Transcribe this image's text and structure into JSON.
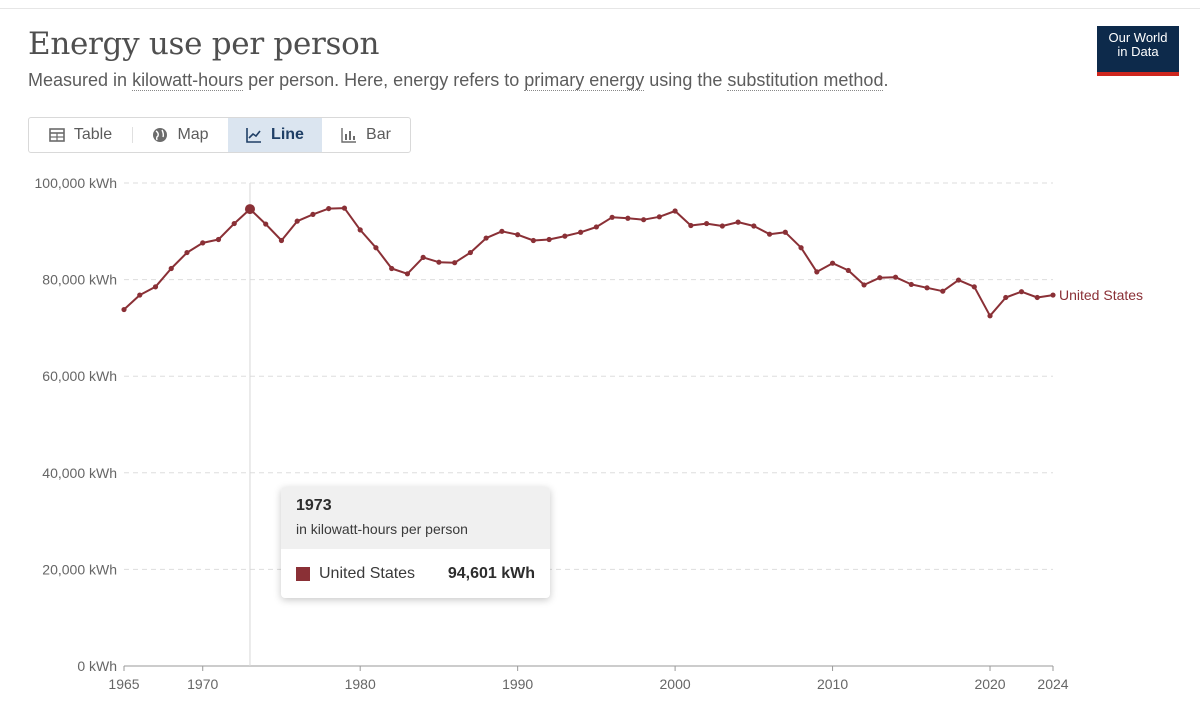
{
  "header": {
    "title": "Energy use per person",
    "subtitle_parts": [
      "Measured in ",
      "kilowatt-hours",
      " per person. Here, energy refers to ",
      "primary energy",
      " using the ",
      "substitution method",
      "."
    ],
    "logo_line1": "Our World",
    "logo_line2": "in Data"
  },
  "tabs": [
    {
      "label": "Table",
      "icon": "table-icon",
      "active": false
    },
    {
      "label": "Map",
      "icon": "globe-icon",
      "active": false
    },
    {
      "label": "Line",
      "icon": "line-chart-icon",
      "active": true
    },
    {
      "label": "Bar",
      "icon": "bar-chart-icon",
      "active": false
    }
  ],
  "colors": {
    "series": "#8a3036",
    "grid": "#dddddd",
    "tab_active": "#dbe5f0",
    "logo_bg": "#0d2a4b",
    "logo_accent": "#ce261e"
  },
  "tooltip": {
    "year": "1973",
    "unit": "in kilowatt-hours per person",
    "entity": "United States",
    "value": "94,601 kWh"
  },
  "chart_data": {
    "type": "line",
    "title": "Energy use per person",
    "ylim": [
      0,
      100000
    ],
    "xlim": [
      1965,
      2024
    ],
    "y_ticks": [
      0,
      20000,
      40000,
      60000,
      80000,
      100000
    ],
    "y_tick_labels": [
      "0 kWh",
      "20,000 kWh",
      "40,000 kWh",
      "60,000 kWh",
      "80,000 kWh",
      "100,000 kWh"
    ],
    "x_ticks": [
      1965,
      1970,
      1980,
      1990,
      2000,
      2010,
      2020,
      2024
    ],
    "grid": true,
    "highlight_x": 1973,
    "series": [
      {
        "name": "United States",
        "x": [
          1965,
          1966,
          1967,
          1968,
          1969,
          1970,
          1971,
          1972,
          1973,
          1974,
          1975,
          1976,
          1977,
          1978,
          1979,
          1980,
          1981,
          1982,
          1983,
          1984,
          1985,
          1986,
          1987,
          1988,
          1989,
          1990,
          1991,
          1992,
          1993,
          1994,
          1995,
          1996,
          1997,
          1998,
          1999,
          2000,
          2001,
          2002,
          2003,
          2004,
          2005,
          2006,
          2007,
          2008,
          2009,
          2010,
          2011,
          2012,
          2013,
          2014,
          2015,
          2016,
          2017,
          2018,
          2019,
          2020,
          2021,
          2022,
          2023,
          2024
        ],
        "y": [
          73800,
          76800,
          78500,
          82300,
          85600,
          87600,
          88300,
          91600,
          94601,
          91500,
          88100,
          92100,
          93500,
          94700,
          94800,
          90300,
          86600,
          82300,
          81200,
          84600,
          83600,
          83500,
          85600,
          88600,
          90000,
          89300,
          88100,
          88300,
          89000,
          89800,
          90900,
          92900,
          92700,
          92400,
          93000,
          94200,
          91200,
          91600,
          91100,
          91900,
          91100,
          89400,
          89800,
          86600,
          81600,
          83400,
          81900,
          78900,
          80400,
          80500,
          79000,
          78300,
          77600,
          79900,
          78500,
          72500,
          76300,
          77500,
          76300,
          76800
        ]
      }
    ]
  }
}
